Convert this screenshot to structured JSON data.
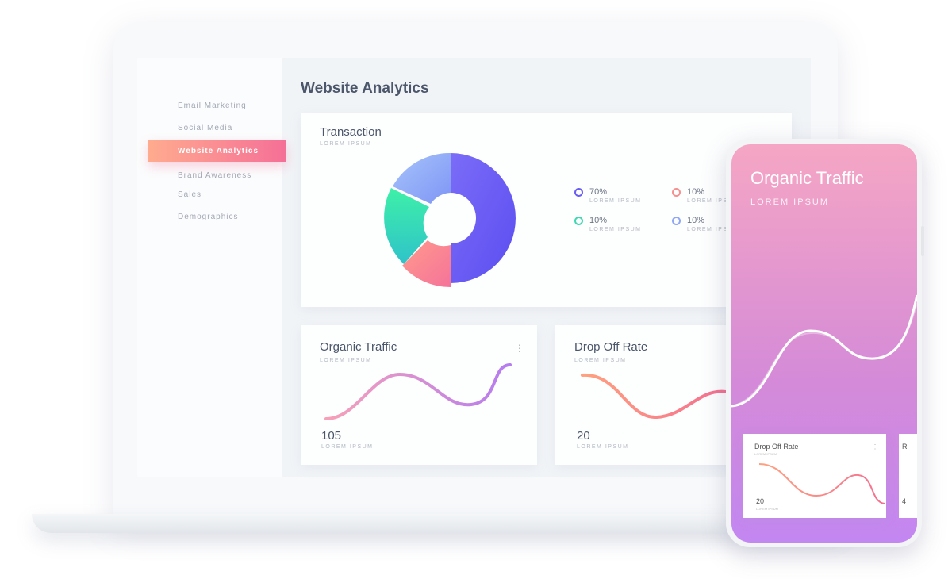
{
  "sidebar": {
    "items": [
      "Email Marketing",
      "Social Media",
      "Website Analytics",
      "Brand Awareness",
      "Sales",
      "Demographics"
    ],
    "active": "Website Analytics"
  },
  "page_title": "Website Analytics",
  "transaction": {
    "title": "Transaction",
    "subtitle": "LOREM IPSUM",
    "legend": [
      {
        "value": "70%",
        "label": "LOREM IPSUM",
        "color": "#6b5cf6"
      },
      {
        "value": "10%",
        "label": "LOREM IPSUM",
        "color": "#f88f8f"
      },
      {
        "value": "10%",
        "label": "LOREM IPSUM",
        "color": "#3ed9b0"
      },
      {
        "value": "10%",
        "label": "LOREM IPSUM",
        "color": "#8fa7f5"
      }
    ]
  },
  "organic": {
    "title": "Organic Traffic",
    "subtitle": "LOREM IPSUM",
    "value": "105",
    "value_label": "LOREM IPSUM"
  },
  "dropoff": {
    "title": "Drop Off Rate",
    "subtitle": "LOREM IPSUM",
    "value": "20",
    "value_label": "LOREM IPSUM"
  },
  "phone": {
    "title": "Organic Traffic",
    "subtitle": "LOREM IPSUM",
    "card": {
      "title": "Drop Off Rate",
      "subtitle": "LOREM IPSUM",
      "value": "20",
      "value_label": "LOREM IPSUM"
    },
    "card2": {
      "title": "R",
      "value": "4"
    }
  }
}
